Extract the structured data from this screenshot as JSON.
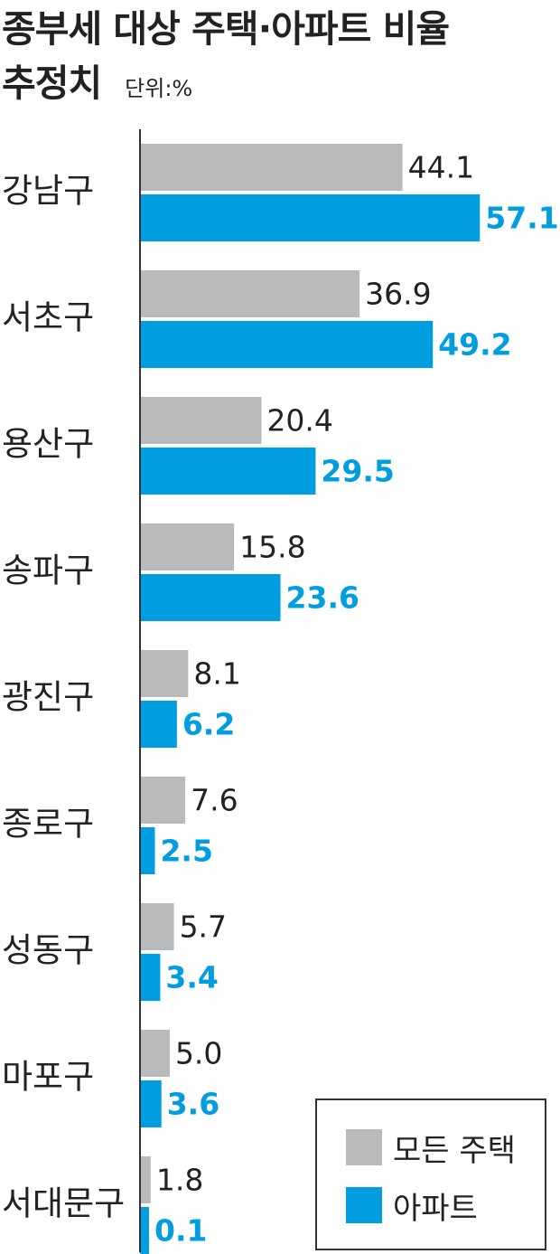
{
  "title": {
    "line1": "종부세 대상 주택·아파트 비율",
    "line2": "추정치",
    "unit": "단위:%"
  },
  "colors": {
    "all_housing": "#b9babc",
    "apartment": "#009ee0"
  },
  "chart_data": {
    "type": "bar",
    "orientation": "horizontal",
    "title": "종부세 대상 주택·아파트 비율 추정치",
    "unit": "단위:%",
    "categories": [
      "강남구",
      "서초구",
      "용산구",
      "송파구",
      "광진구",
      "종로구",
      "성동구",
      "마포구",
      "서대문구"
    ],
    "series": [
      {
        "name": "모든 주택",
        "values": [
          44.1,
          36.9,
          20.4,
          15.8,
          8.1,
          7.6,
          5.7,
          5.0,
          1.8
        ]
      },
      {
        "name": "아파트",
        "values": [
          57.1,
          49.2,
          29.5,
          23.6,
          6.2,
          2.5,
          3.4,
          3.6,
          0.1
        ]
      }
    ],
    "value_labels": [
      [
        "44.1",
        "36.9",
        "20.4",
        "15.8",
        "8.1",
        "7.6",
        "5.7",
        "5.0",
        "1.8"
      ],
      [
        "57.1",
        "49.2",
        "29.5",
        "23.6",
        "6.2",
        "2.5",
        "3.4",
        "3.6",
        "0.1"
      ]
    ],
    "legend": {
      "position": "bottom-right",
      "items": [
        "모든 주택",
        "아파트"
      ]
    }
  }
}
